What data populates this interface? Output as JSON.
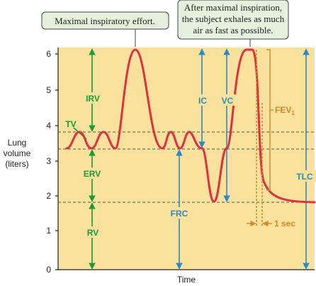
{
  "y_axis": {
    "label_lines": [
      "Lung",
      "volume",
      "(liters)"
    ],
    "ticks": [
      "0",
      "1",
      "2",
      "3",
      "4",
      "5",
      "6"
    ]
  },
  "x_axis": {
    "label": "Time"
  },
  "callouts": {
    "max_effort": "Maximal inspiratory effort.",
    "exhale_lines": [
      "After maximal inspiration,",
      "the subject exhales as much",
      "air as fast as possible."
    ]
  },
  "volume_labels": {
    "irv": "IRV",
    "tv": "TV",
    "erv": "ERV",
    "rv": "RV",
    "ic": "IC",
    "vc": "VC",
    "frc": "FRC",
    "tlc": "TLC",
    "fev1_base": "FEV",
    "fev1_sub": "1",
    "one_sec": "1 sec"
  },
  "colors": {
    "panel_bg": "#fbe29c",
    "curve": "#e03040",
    "green_arrows": "#1a9a3a",
    "blue_arrows": "#2a8ac8",
    "orange_marks": "#d08a28",
    "dashed_lines": "#555555",
    "callout_bg": "#e6f0dc"
  }
}
